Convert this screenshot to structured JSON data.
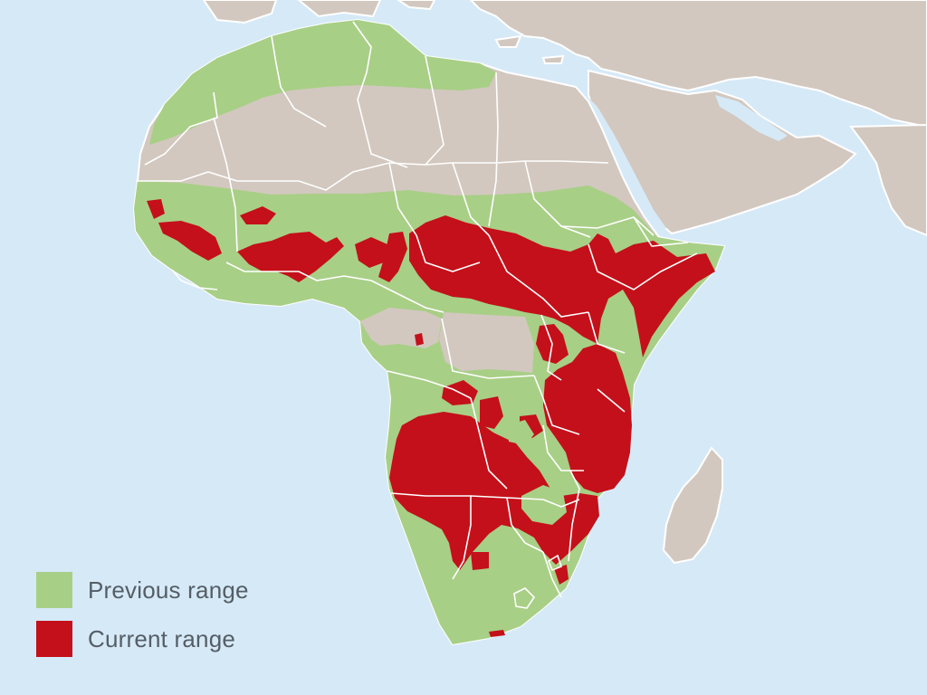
{
  "colors": {
    "sea": "#d6e9f7",
    "land": "#d2c8bf",
    "previous_range": "#a8cf86",
    "current_range": "#c4101a",
    "border": "#ffffff"
  },
  "legend": {
    "items": [
      {
        "label": "Previous range",
        "color": "#a8cf86"
      },
      {
        "label": "Current range",
        "color": "#c4101a"
      }
    ]
  }
}
